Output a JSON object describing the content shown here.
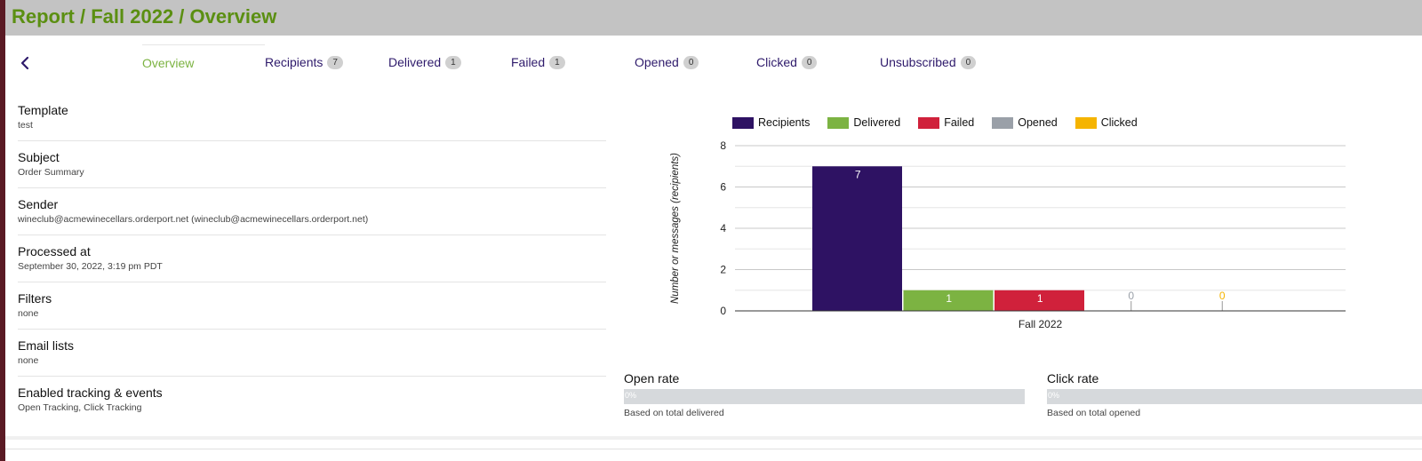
{
  "header": {
    "title": "Report / Fall 2022 / Overview"
  },
  "tabs": [
    {
      "label": "Overview",
      "count": null,
      "active": true
    },
    {
      "label": "Recipients",
      "count": "7"
    },
    {
      "label": "Delivered",
      "count": "1"
    },
    {
      "label": "Failed",
      "count": "1"
    },
    {
      "label": "Opened",
      "count": "0"
    },
    {
      "label": "Clicked",
      "count": "0"
    },
    {
      "label": "Unsubscribed",
      "count": "0"
    }
  ],
  "details": [
    {
      "label": "Template",
      "value": "test"
    },
    {
      "label": "Subject",
      "value": "Order Summary"
    },
    {
      "label": "Sender",
      "value": "wineclub@acmewinecellars.orderport.net (wineclub@acmewinecellars.orderport.net)"
    },
    {
      "label": "Processed at",
      "value": "September 30, 2022, 3:19 pm PDT"
    },
    {
      "label": "Filters",
      "value": "none"
    },
    {
      "label": "Email lists",
      "value": "none"
    },
    {
      "label": "Enabled tracking & events",
      "value": "Open Tracking, Click Tracking"
    }
  ],
  "colors": {
    "recipients": "#2e1263",
    "delivered": "#7cb342",
    "failed": "#d0213b",
    "opened": "#9aa0a8",
    "clicked": "#f5b400",
    "title": "#5b8f12",
    "tab": "#2e1a6b",
    "tab_active": "#7cb342"
  },
  "chart_data": {
    "type": "bar",
    "categories": [
      "Fall 2022"
    ],
    "series": [
      {
        "name": "Recipients",
        "values": [
          7
        ]
      },
      {
        "name": "Delivered",
        "values": [
          1
        ]
      },
      {
        "name": "Failed",
        "values": [
          1
        ]
      },
      {
        "name": "Opened",
        "values": [
          0
        ]
      },
      {
        "name": "Clicked",
        "values": [
          0
        ]
      }
    ],
    "ylabel": "Number or messages (recipients)",
    "xlabel": "",
    "ylim": [
      0,
      8
    ],
    "yticks": [
      0,
      2,
      4,
      6,
      8
    ],
    "grid": true,
    "legend": "top"
  },
  "rates": [
    {
      "title": "Open rate",
      "percent_label": "0%",
      "value": 0,
      "note": "Based on total delivered"
    },
    {
      "title": "Click rate",
      "percent_label": "0%",
      "value": 0,
      "note": "Based on total opened"
    }
  ]
}
